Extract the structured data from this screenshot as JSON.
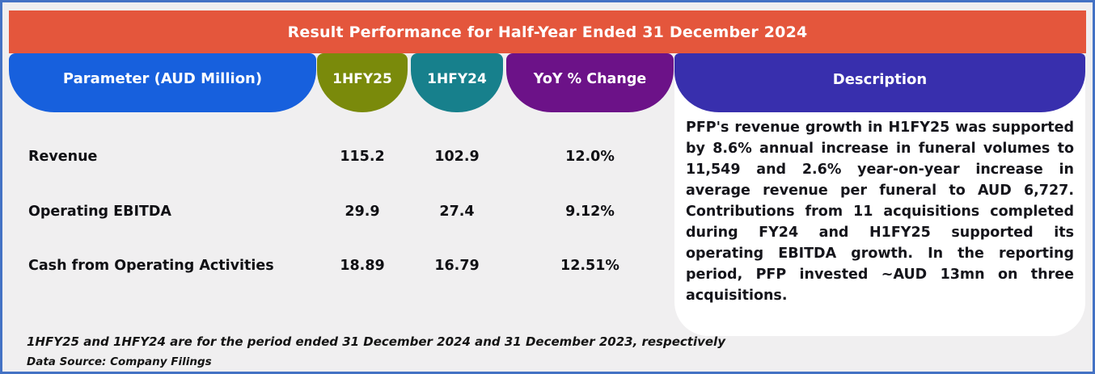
{
  "title": "Result Performance for Half-Year Ended 31 December 2024",
  "table": {
    "columns": [
      "Parameter (AUD Million)",
      "1HFY25",
      "1HFY24",
      "YoY % Change",
      "Description"
    ],
    "rows": [
      {
        "parameter": "Revenue",
        "hfy25": "115.2",
        "hfy24": "102.9",
        "yoy": "12.0%"
      },
      {
        "parameter": "Operating EBITDA",
        "hfy25": "29.9",
        "hfy24": "27.4",
        "yoy": "9.12%"
      },
      {
        "parameter": "Cash from Operating Activities",
        "hfy25": "18.89",
        "hfy24": "16.79",
        "yoy": "12.51%"
      }
    ]
  },
  "description": "PFP's revenue growth in H1FY25 was supported by 8.6% annual increase in funeral volumes to 11,549 and 2.6% year-on-year increase in average revenue per funeral to AUD 6,727. Contributions from 11 acquisitions completed during FY24 and H1FY25 supported its operating EBITDA growth. In the reporting period, PFP invested ~AUD 13mn on three acquisitions.",
  "footnotes": [
    "1HFY25 and 1HFY24 are for the period ended 31 December 2024 and 31 December 2023, respectively",
    "Data Source: Company Filings"
  ],
  "colors": {
    "frame_border": "#4472C4",
    "background": "#F0EFF0",
    "title_bar": "#E4563C",
    "parameter_header": "#1760DD",
    "hfy25_header": "#7A8A0B",
    "hfy24_header": "#17808C",
    "yoy_header": "#6C1288",
    "description_header": "#382FAD",
    "description_card": "#FFFFFF",
    "text": "#15151B"
  }
}
